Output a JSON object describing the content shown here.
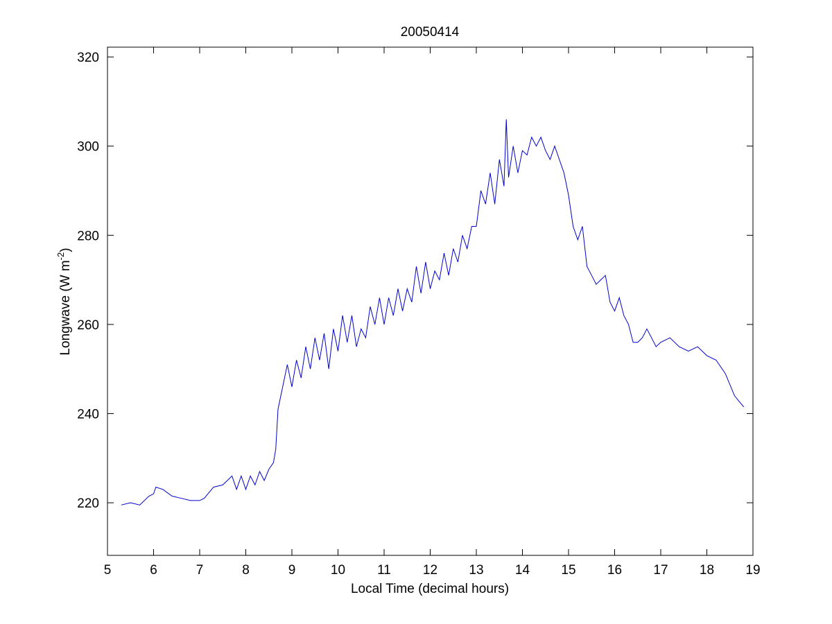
{
  "chart_data": {
    "type": "line",
    "title": "20050414",
    "xlabel": "Local Time (decimal hours)",
    "ylabel": [
      "Longwave (W m",
      "-2",
      ")"
    ],
    "color": "#0000cc",
    "x": [
      5.3,
      5.5,
      5.7,
      5.9,
      6.0,
      6.05,
      6.2,
      6.4,
      6.6,
      6.8,
      7.0,
      7.1,
      7.3,
      7.5,
      7.7,
      7.8,
      7.9,
      8.0,
      8.1,
      8.2,
      8.3,
      8.4,
      8.5,
      8.6,
      8.65,
      8.7,
      8.8,
      8.9,
      9.0,
      9.1,
      9.2,
      9.3,
      9.4,
      9.5,
      9.6,
      9.7,
      9.8,
      9.9,
      10.0,
      10.1,
      10.2,
      10.3,
      10.4,
      10.5,
      10.6,
      10.7,
      10.8,
      10.9,
      11.0,
      11.1,
      11.2,
      11.3,
      11.4,
      11.5,
      11.6,
      11.7,
      11.8,
      11.9,
      12.0,
      12.1,
      12.2,
      12.3,
      12.4,
      12.5,
      12.6,
      12.7,
      12.8,
      12.9,
      13.0,
      13.1,
      13.2,
      13.3,
      13.4,
      13.5,
      13.6,
      13.65,
      13.7,
      13.8,
      13.9,
      14.0,
      14.1,
      14.2,
      14.3,
      14.4,
      14.5,
      14.6,
      14.7,
      14.8,
      14.9,
      15.0,
      15.1,
      15.2,
      15.3,
      15.4,
      15.5,
      15.6,
      15.7,
      15.8,
      15.9,
      16.0,
      16.1,
      16.2,
      16.3,
      16.4,
      16.5,
      16.6,
      16.7,
      16.8,
      16.9,
      17.0,
      17.2,
      17.4,
      17.6,
      17.8,
      18.0,
      18.2,
      18.4,
      18.6,
      18.8
    ],
    "values": [
      219.5,
      220,
      219.5,
      221.5,
      222,
      223.5,
      223,
      221.5,
      221,
      220.5,
      220.5,
      221,
      223.5,
      224,
      226,
      223,
      226,
      223,
      226,
      224,
      227,
      225,
      227.5,
      229,
      232,
      241,
      246,
      251,
      246,
      252,
      248,
      255,
      250,
      257,
      252,
      258,
      250,
      259,
      254,
      262,
      256,
      262,
      255,
      259,
      257,
      264,
      260,
      266,
      260,
      266,
      262,
      268,
      263,
      268,
      265,
      273,
      267,
      274,
      268,
      272,
      270,
      276,
      271,
      277,
      274,
      280,
      277,
      282,
      282,
      290,
      287,
      294,
      287,
      297,
      291,
      306,
      293,
      300,
      294,
      299,
      298,
      302,
      300,
      302,
      299,
      297,
      300,
      297,
      294,
      289,
      282,
      279,
      282,
      273,
      271,
      269,
      270,
      271,
      265,
      263,
      266,
      262,
      260,
      256,
      256,
      257,
      259,
      257,
      255,
      256,
      257,
      255,
      254,
      255,
      253,
      252,
      249,
      244,
      241.5
    ],
    "xlim": [
      5,
      19
    ],
    "xticks": [
      5,
      6,
      7,
      8,
      9,
      10,
      11,
      12,
      13,
      14,
      15,
      16,
      17,
      18,
      19
    ],
    "ylim": [
      208.2,
      322.2
    ],
    "yticks": [
      220,
      240,
      260,
      280,
      300,
      320
    ],
    "grid": false
  }
}
